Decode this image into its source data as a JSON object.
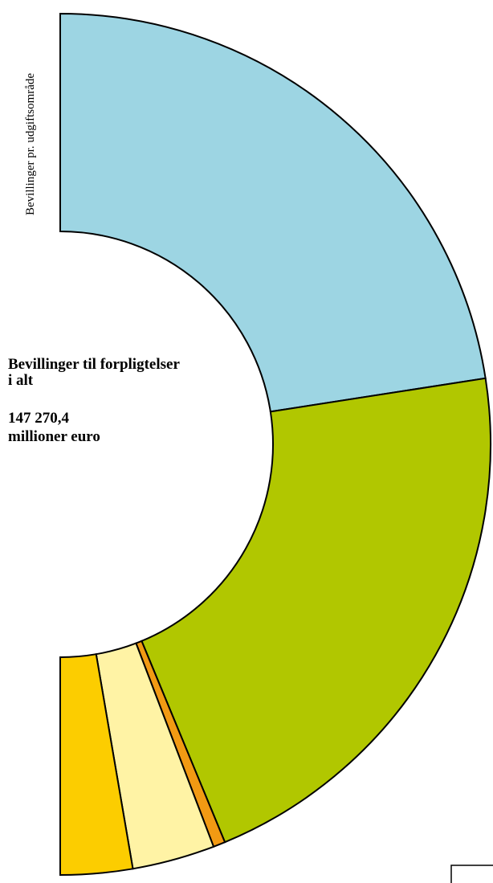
{
  "chart_data": {
    "type": "donut-half",
    "axis_label": "Bevillinger pr. udgiftsområde",
    "title_lines": [
      "Bevillinger til forpligtelser",
      "i alt"
    ],
    "total_value": "147 270,4",
    "total_unit": "millioner euro",
    "values": [
      45.1,
      42.4,
      0.9,
      6.2,
      5.4
    ],
    "colors": [
      "#9dd5e3",
      "#b1c700",
      "#f29a13",
      "#fff3a5",
      "#fccd00"
    ]
  }
}
